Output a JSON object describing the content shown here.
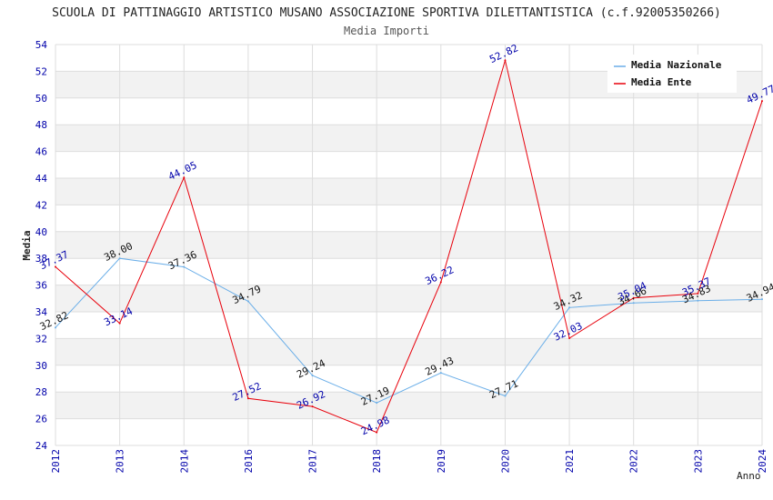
{
  "chart_data": {
    "type": "line",
    "title": "SCUOLA DI PATTINAGGIO ARTISTICO MUSANO ASSOCIAZIONE SPORTIVA DILETTANTISTICA (c.f.92005350266)",
    "subtitle": "Media Importi",
    "xlabel": "Anno",
    "ylabel": "Media",
    "ylim": [
      24,
      54
    ],
    "yticks": [
      "24",
      "26",
      "28",
      "30",
      "32",
      "34",
      "36",
      "38",
      "40",
      "42",
      "44",
      "46",
      "48",
      "50",
      "52",
      "54"
    ],
    "categories": [
      "2012",
      "2013",
      "2014",
      "2016",
      "2017",
      "2018",
      "2019",
      "2020",
      "2021",
      "2022",
      "2023",
      "2024"
    ],
    "series": [
      {
        "name": "Media Nazionale",
        "color": "#6aaee8",
        "values": [
          32.82,
          38.0,
          37.36,
          34.79,
          29.24,
          27.19,
          29.43,
          27.71,
          34.32,
          34.66,
          34.83,
          34.94
        ],
        "labels": [
          "32.82",
          "38.00",
          "37.36",
          "34.79",
          "29.24",
          "27.19",
          "29.43",
          "27.71",
          "34.32",
          "34.66",
          "34.83",
          "34.94"
        ]
      },
      {
        "name": "Media Ente",
        "color": "#e8000b",
        "values": [
          37.37,
          33.14,
          44.05,
          27.52,
          26.92,
          24.98,
          36.22,
          52.82,
          32.03,
          35.04,
          35.37,
          49.77
        ],
        "labels": [
          "37.37",
          "33.14",
          "44.05",
          "27.52",
          "26.92",
          "24.98",
          "36.22",
          "52.82",
          "32.03",
          "35.04",
          "35.37",
          "49.77"
        ]
      }
    ],
    "legend_position": "top-right",
    "grid": true
  }
}
